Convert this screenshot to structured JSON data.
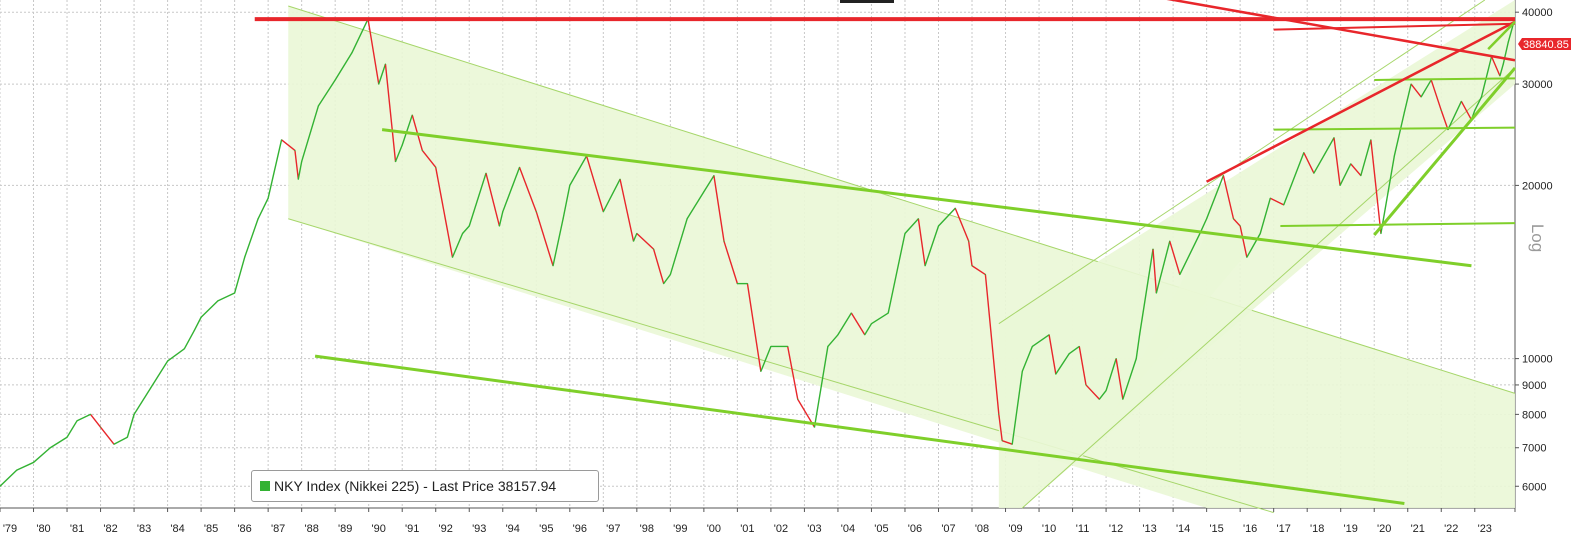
{
  "chart_data": {
    "type": "line",
    "title": "",
    "scale": "log",
    "scale_label": "Log",
    "ylim": [
      5500,
      42000
    ],
    "xlim": [
      1979.0,
      2024.2
    ],
    "y_ticks": [
      6000,
      7000,
      8000,
      9000,
      10000,
      20000,
      30000,
      40000
    ],
    "x_ticks": [
      "'79",
      "'80",
      "'81",
      "'82",
      "'83",
      "'84",
      "'85",
      "'86",
      "'87",
      "'88",
      "'89",
      "'90",
      "'91",
      "'92",
      "'93",
      "'94",
      "'95",
      "'96",
      "'97",
      "'98",
      "'99",
      "'00",
      "'01",
      "'02",
      "'03",
      "'04",
      "'05",
      "'06",
      "'07",
      "'08",
      "'09",
      "'10",
      "'11",
      "'12",
      "'13",
      "'14",
      "'15",
      "'16",
      "'17",
      "'18",
      "'19",
      "'20",
      "'21",
      "'22",
      "'23"
    ],
    "price_label": "38840.85",
    "grid": true,
    "series": [
      {
        "name": "NKY Index (Nikkei 225) - Last Price 38157.94",
        "color": "#33b233",
        "down_color": "#e8262b",
        "points": [
          [
            1979.0,
            6000
          ],
          [
            1979.5,
            6400
          ],
          [
            1980.0,
            6600
          ],
          [
            1980.5,
            7000
          ],
          [
            1981.0,
            7300
          ],
          [
            1981.3,
            7800
          ],
          [
            1981.7,
            8000
          ],
          [
            1982.0,
            7600
          ],
          [
            1982.4,
            7100
          ],
          [
            1982.8,
            7300
          ],
          [
            1983.0,
            8000
          ],
          [
            1983.5,
            8900
          ],
          [
            1984.0,
            9900
          ],
          [
            1984.5,
            10400
          ],
          [
            1984.8,
            11200
          ],
          [
            1985.0,
            11800
          ],
          [
            1985.5,
            12600
          ],
          [
            1986.0,
            13000
          ],
          [
            1986.3,
            15000
          ],
          [
            1986.7,
            17500
          ],
          [
            1987.0,
            19000
          ],
          [
            1987.4,
            24000
          ],
          [
            1987.8,
            23000
          ],
          [
            1987.9,
            20500
          ],
          [
            1988.0,
            22000
          ],
          [
            1988.5,
            27500
          ],
          [
            1989.0,
            30500
          ],
          [
            1989.5,
            34000
          ],
          [
            1989.98,
            38915
          ],
          [
            1990.3,
            30000
          ],
          [
            1990.5,
            32500
          ],
          [
            1990.8,
            22000
          ],
          [
            1991.0,
            23500
          ],
          [
            1991.3,
            26500
          ],
          [
            1991.6,
            23000
          ],
          [
            1992.0,
            21500
          ],
          [
            1992.5,
            15000
          ],
          [
            1992.8,
            16500
          ],
          [
            1993.0,
            17000
          ],
          [
            1993.5,
            21000
          ],
          [
            1993.9,
            17000
          ],
          [
            1994.0,
            18000
          ],
          [
            1994.5,
            21500
          ],
          [
            1995.0,
            18000
          ],
          [
            1995.5,
            14500
          ],
          [
            1995.8,
            17500
          ],
          [
            1996.0,
            20000
          ],
          [
            1996.5,
            22500
          ],
          [
            1997.0,
            18000
          ],
          [
            1997.5,
            20500
          ],
          [
            1997.9,
            16000
          ],
          [
            1998.0,
            16500
          ],
          [
            1998.5,
            15500
          ],
          [
            1998.8,
            13500
          ],
          [
            1999.0,
            14000
          ],
          [
            1999.5,
            17500
          ],
          [
            2000.0,
            19500
          ],
          [
            2000.3,
            20800
          ],
          [
            2000.6,
            16000
          ],
          [
            2001.0,
            13500
          ],
          [
            2001.3,
            13500
          ],
          [
            2001.7,
            9500
          ],
          [
            2002.0,
            10500
          ],
          [
            2002.5,
            10500
          ],
          [
            2002.8,
            8500
          ],
          [
            2003.3,
            7600
          ],
          [
            2003.7,
            10500
          ],
          [
            2004.0,
            11000
          ],
          [
            2004.4,
            12000
          ],
          [
            2004.8,
            11000
          ],
          [
            2005.0,
            11500
          ],
          [
            2005.5,
            12000
          ],
          [
            2006.0,
            16500
          ],
          [
            2006.4,
            17500
          ],
          [
            2006.6,
            14500
          ],
          [
            2007.0,
            17000
          ],
          [
            2007.5,
            18250
          ],
          [
            2007.9,
            16000
          ],
          [
            2008.0,
            14500
          ],
          [
            2008.4,
            14000
          ],
          [
            2008.8,
            8000
          ],
          [
            2008.9,
            7200
          ],
          [
            2009.2,
            7100
          ],
          [
            2009.5,
            9500
          ],
          [
            2009.8,
            10500
          ],
          [
            2010.3,
            11000
          ],
          [
            2010.5,
            9400
          ],
          [
            2010.9,
            10200
          ],
          [
            2011.2,
            10500
          ],
          [
            2011.4,
            9000
          ],
          [
            2011.8,
            8500
          ],
          [
            2012.0,
            8800
          ],
          [
            2012.3,
            10000
          ],
          [
            2012.5,
            8500
          ],
          [
            2012.9,
            10000
          ],
          [
            2013.0,
            11000
          ],
          [
            2013.4,
            15500
          ],
          [
            2013.5,
            13000
          ],
          [
            2013.9,
            16000
          ],
          [
            2014.2,
            14000
          ],
          [
            2014.8,
            16500
          ],
          [
            2015.0,
            17500
          ],
          [
            2015.5,
            20800
          ],
          [
            2015.8,
            17500
          ],
          [
            2016.0,
            17000
          ],
          [
            2016.2,
            15000
          ],
          [
            2016.6,
            16500
          ],
          [
            2016.9,
            19000
          ],
          [
            2017.3,
            18500
          ],
          [
            2017.9,
            22800
          ],
          [
            2018.2,
            21000
          ],
          [
            2018.8,
            24200
          ],
          [
            2018.98,
            20000
          ],
          [
            2019.3,
            21800
          ],
          [
            2019.6,
            20800
          ],
          [
            2019.9,
            24000
          ],
          [
            2020.2,
            16500
          ],
          [
            2020.6,
            22500
          ],
          [
            2020.9,
            26800
          ],
          [
            2021.1,
            30000
          ],
          [
            2021.4,
            28500
          ],
          [
            2021.7,
            30500
          ],
          [
            2022.0,
            27000
          ],
          [
            2022.2,
            25000
          ],
          [
            2022.6,
            28000
          ],
          [
            2022.9,
            26000
          ],
          [
            2023.0,
            27000
          ],
          [
            2023.2,
            28500
          ],
          [
            2023.5,
            33500
          ],
          [
            2023.75,
            31000
          ],
          [
            2023.85,
            32500
          ],
          [
            2024.0,
            35500
          ],
          [
            2024.15,
            38157.94
          ]
        ]
      }
    ],
    "annotations": {
      "channel_fill": "#eaf7d6",
      "channel_edge": "#a6d66a",
      "trend_green": "#7fcf2a",
      "trend_red": "#e8262b"
    }
  }
}
